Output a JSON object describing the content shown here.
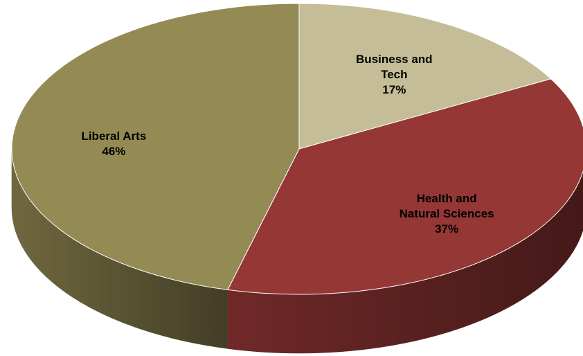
{
  "chart_data": {
    "type": "pie",
    "categories": [
      "Business and Tech",
      "Health and Natural Sciences",
      "Liberal Arts"
    ],
    "values": [
      17,
      37,
      46
    ],
    "value_labels": [
      "17%",
      "37%",
      "46%"
    ],
    "colors": [
      "#c4bd97",
      "#953735",
      "#948a54"
    ]
  }
}
